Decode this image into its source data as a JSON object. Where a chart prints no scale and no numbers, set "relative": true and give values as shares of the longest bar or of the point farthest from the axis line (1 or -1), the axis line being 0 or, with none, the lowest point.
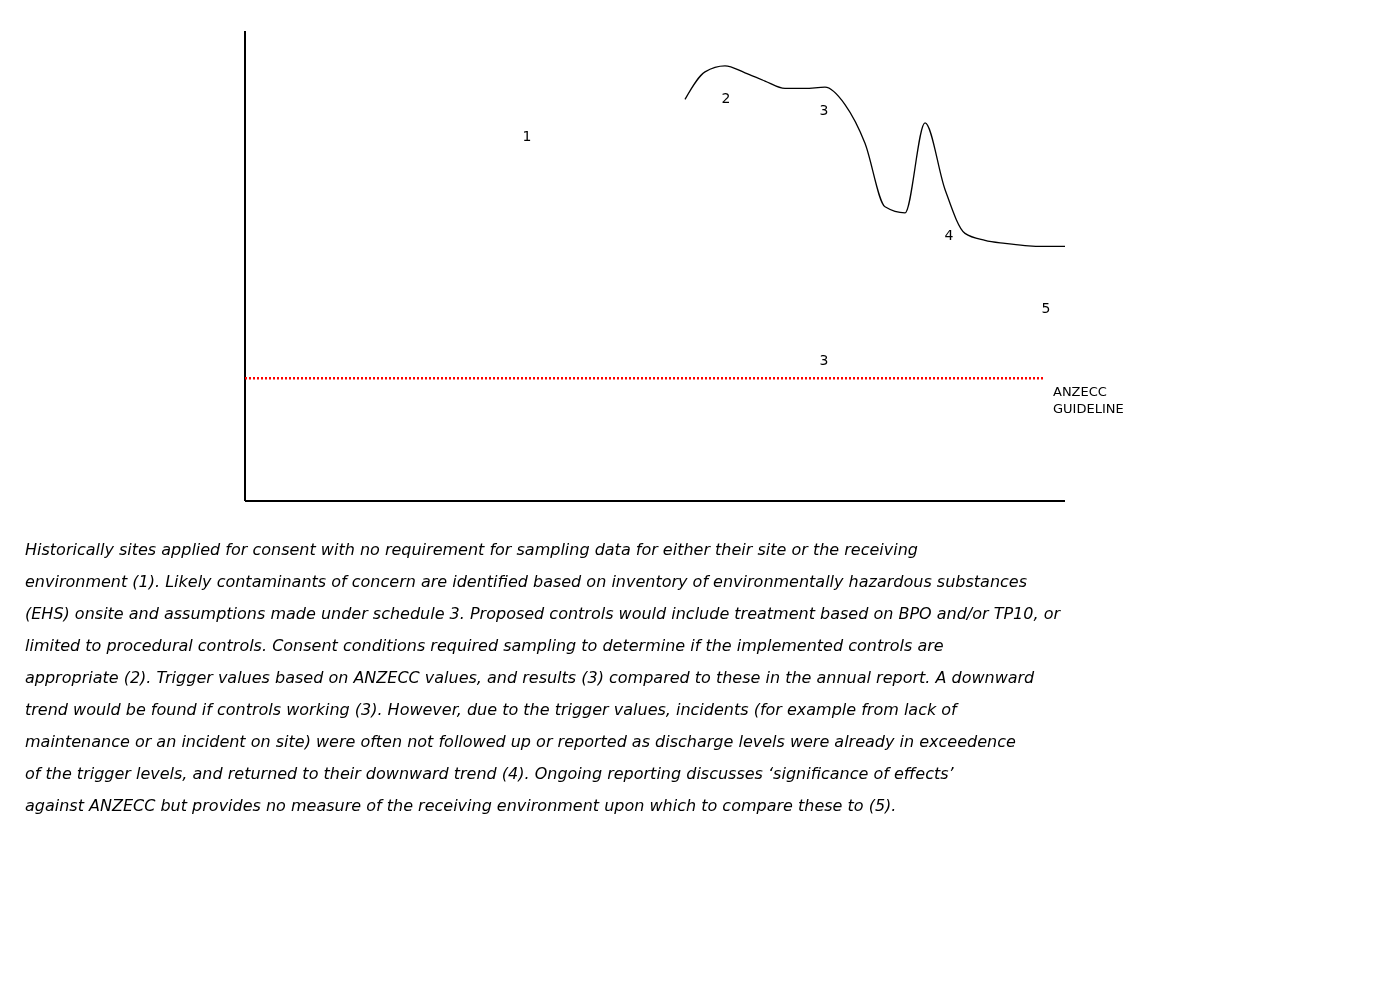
{
  "chart_data": {
    "type": "line",
    "relative": true,
    "grid": false,
    "marker": "none",
    "line_style": "solid",
    "categories": [
      null,
      null,
      null,
      null,
      null,
      null,
      null,
      null,
      null,
      null,
      null,
      null,
      null,
      null,
      null,
      null,
      null,
      null,
      null,
      null,
      null,
      null,
      null,
      null,
      null,
      null,
      null,
      null,
      null,
      null,
      null,
      null,
      null,
      null,
      null,
      null,
      null,
      null,
      null,
      null,
      null,
      null,
      null
    ],
    "series": [
      {
        "color": "#000000",
        "values": [
          null,
          null,
          null,
          null,
          null,
          null,
          null,
          null,
          null,
          null,
          null,
          null,
          null,
          null,
          null,
          null,
          null,
          null,
          null,
          null,
          null,
          null,
          0.923,
          0.986,
          1.0,
          0.984,
          0.965,
          0.948,
          0.948,
          0.951,
          0.911,
          0.822,
          0.676,
          0.662,
          0.869,
          0.716,
          0.615,
          0.599,
          0.592,
          0.587,
          0.585,
          0.585,
          null
        ]
      }
    ],
    "ref_lines": [
      {
        "axis": "y",
        "value": 0.282,
        "label": "ANZECC GUIDELINE",
        "color": "#ff0000",
        "line_style": "dotted"
      }
    ],
    "annotations": [
      "1",
      "2",
      "3",
      "4",
      "5",
      "3",
      "Historically sites applied for consent with no requirement for sampling data for either their site or the receiving environment (1). Likely contaminants of concern are identified based on inventory of environmentally hazardous substances (EHS) onsite and assumptions made under schedule 3. Proposed controls would include treatment based on BPO and/or TP10, or limited to procedural controls. Consent conditions required sampling to determine if the implemented controls are appropriate (2). Trigger values based on ANZECC values, and results (3) compared to these in the annual report. A downward trend would be found if controls working (3). However, due to the trigger values, incidents (for example from lack of maintenance or an incident on site) were often not followed up or reported as discharge levels were already in exceedence of the trigger levels, and returned to their downward trend (4).  Ongoing reporting discusses ‘significance of effects’ against ANZECC but provides no measure of the receiving environment upon which to compare these to (5)."
    ]
  }
}
